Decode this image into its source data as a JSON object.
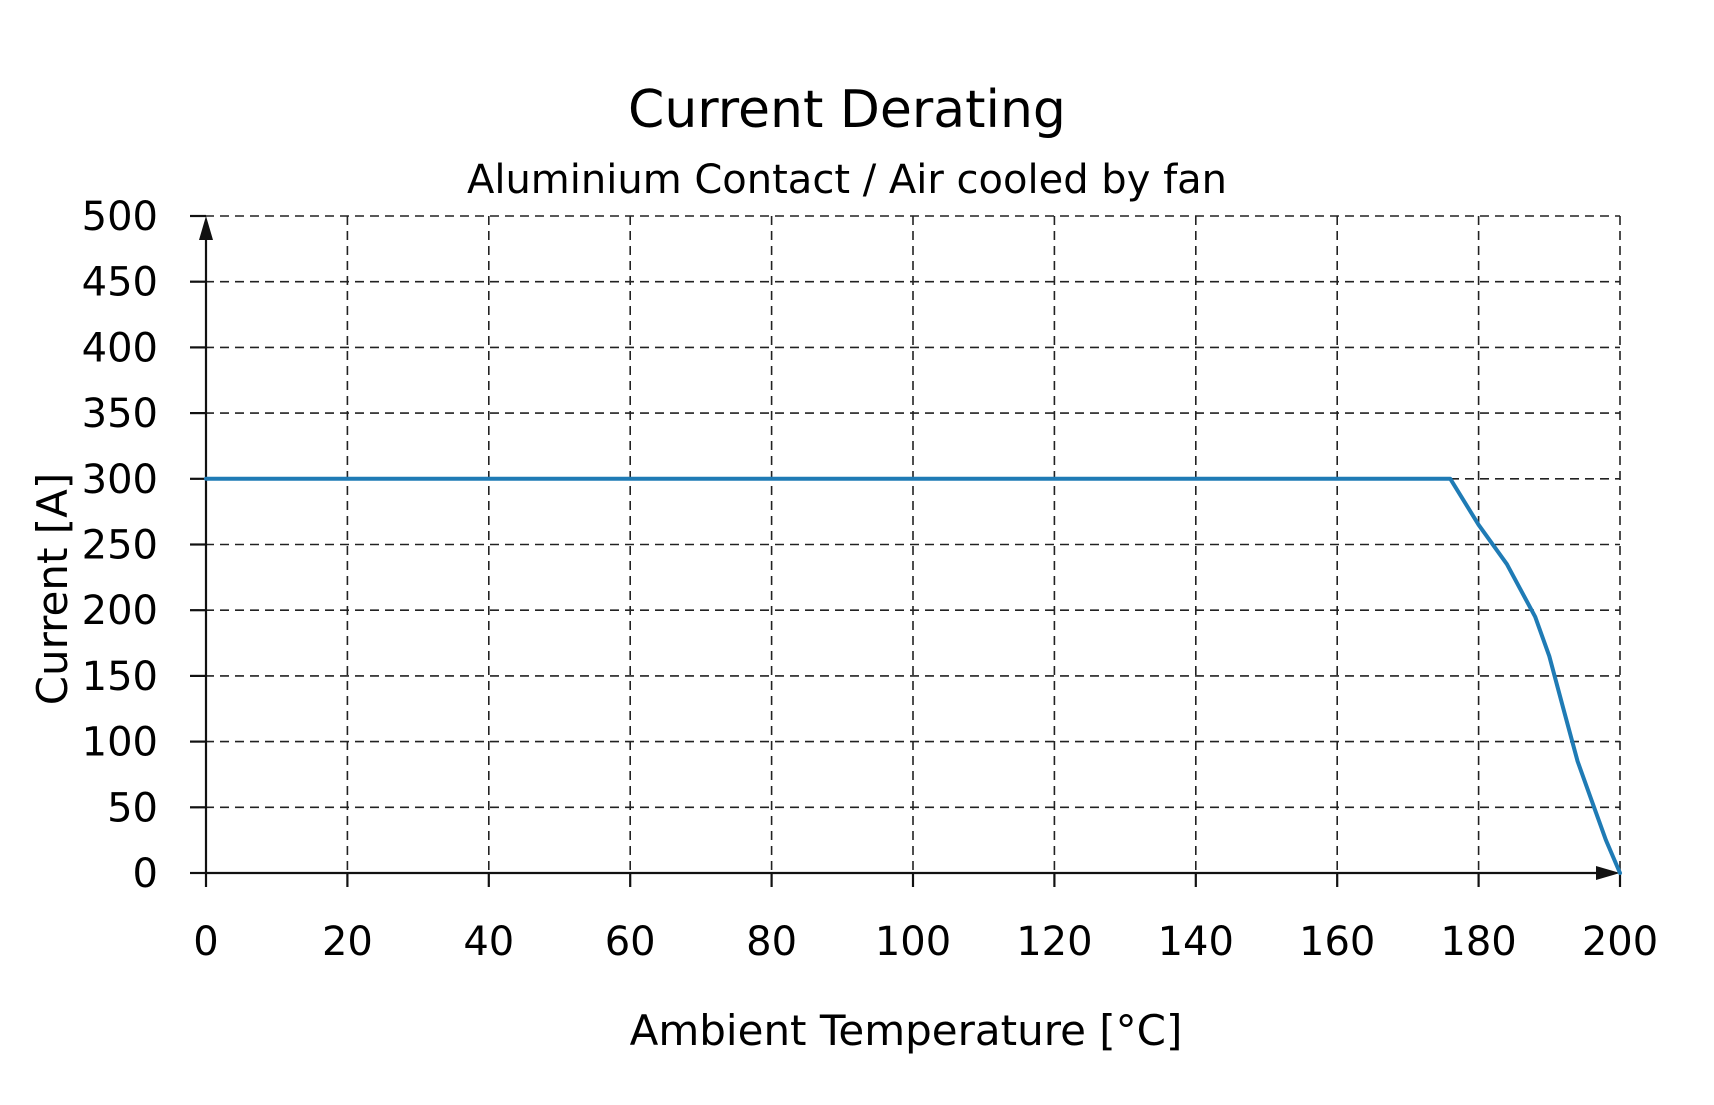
{
  "chart_data": {
    "type": "line",
    "title": "Current Derating",
    "subtitle": "Aluminium Contact / Air cooled by fan",
    "xlabel": "Ambient Temperature [°C]",
    "ylabel": "Current [A]",
    "xlim": [
      0,
      200
    ],
    "ylim": [
      0,
      500
    ],
    "xticks": [
      "0",
      "20",
      "40",
      "60",
      "80",
      "100",
      "120",
      "140",
      "160",
      "180",
      "200"
    ],
    "yticks": [
      "0",
      "50",
      "100",
      "150",
      "200",
      "250",
      "300",
      "350",
      "400",
      "450",
      "500"
    ],
    "grid": true,
    "series": [
      {
        "color": "#1f7bb5",
        "x": [
          0,
          176,
          180,
          184,
          188,
          190,
          192,
          194,
          196,
          198,
          200
        ],
        "y": [
          300,
          300,
          265,
          235,
          195,
          165,
          125,
          85,
          55,
          25,
          0
        ]
      }
    ]
  }
}
